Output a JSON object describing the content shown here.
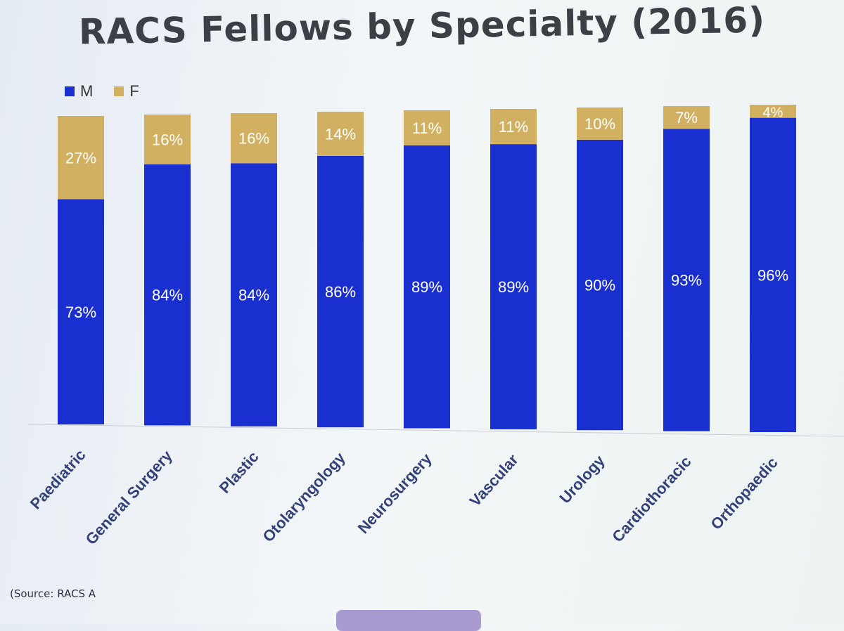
{
  "title": "RACS Fellows by Specialty (2016)",
  "source": "(Source: RACS A",
  "colors": {
    "male": "#1a2fd0",
    "female": "#d1b061",
    "label": "#ffffff",
    "axis_text": "#33407a"
  },
  "chart_data": {
    "type": "bar",
    "stacked": true,
    "percent": true,
    "title": "RACS Fellows by Specialty (2016)",
    "legend_position": "top-left",
    "categories": [
      "Paediatric",
      "General Surgery",
      "Plastic",
      "Otolaryngology",
      "Neurosurgery",
      "Vascular",
      "Urology",
      "Cardiothoracic",
      "Orthopaedic"
    ],
    "series": [
      {
        "name": "M",
        "values": [
          73,
          84,
          84,
          86,
          89,
          89,
          90,
          93,
          96
        ],
        "labels": [
          "73%",
          "84%",
          "84%",
          "86%",
          "89%",
          "89%",
          "90%",
          "93%",
          "96%"
        ]
      },
      {
        "name": "F",
        "values": [
          27,
          16,
          16,
          14,
          11,
          11,
          10,
          7,
          4
        ],
        "labels": [
          "27%",
          "16%",
          "16%",
          "14%",
          "11%",
          "11%",
          "10%",
          "7%",
          "4%"
        ]
      }
    ],
    "ylim": [
      0,
      100
    ],
    "grid": false
  }
}
